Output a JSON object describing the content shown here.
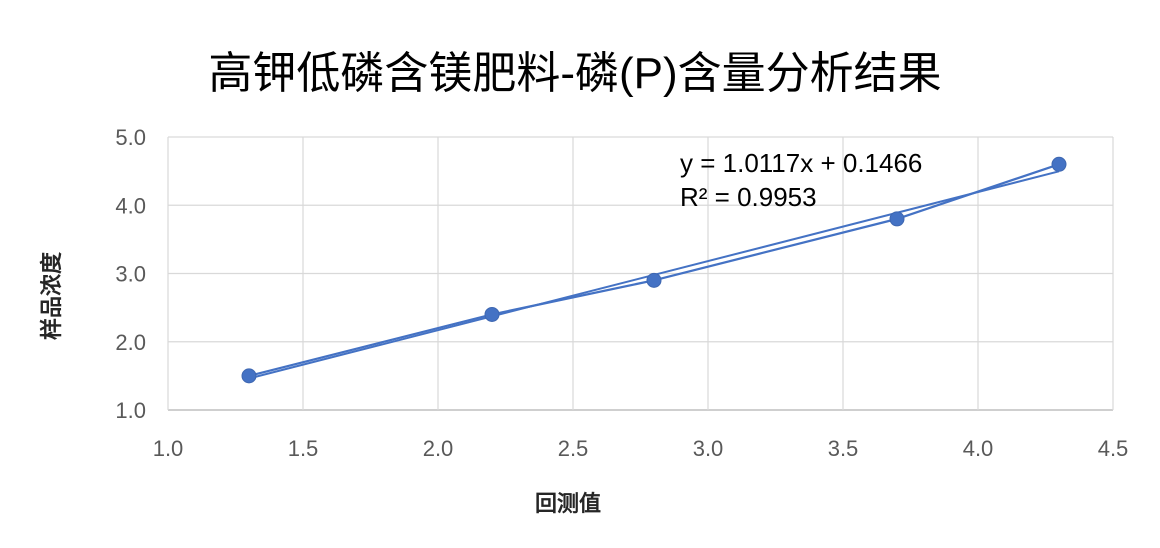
{
  "chart_data": {
    "type": "scatter",
    "mode": "lines+markers",
    "title": "高钾低磷含镁肥料-磷(P)含量分析结果",
    "xlabel": "回测值",
    "ylabel": "样品浓度",
    "xlim": [
      1.0,
      4.5
    ],
    "ylim": [
      1.0,
      5.0
    ],
    "x_ticks": [
      "1.0",
      "1.5",
      "2.0",
      "2.5",
      "3.0",
      "3.5",
      "4.0",
      "4.5"
    ],
    "y_ticks": [
      "1.0",
      "2.0",
      "3.0",
      "4.0",
      "5.0"
    ],
    "grid": true,
    "legend": "none",
    "series": [
      {
        "x": [
          1.3,
          2.2,
          2.8,
          3.7,
          4.3
        ],
        "y": [
          1.5,
          2.4,
          2.9,
          3.8,
          4.6
        ],
        "color": "#4472C4"
      }
    ],
    "trendline": {
      "type": "linear",
      "slope": 1.0117,
      "intercept": 0.1466,
      "equation": "y = 1.0117x + 0.1466",
      "r_squared": "R² = 0.9953",
      "color": "#4472C4"
    }
  }
}
